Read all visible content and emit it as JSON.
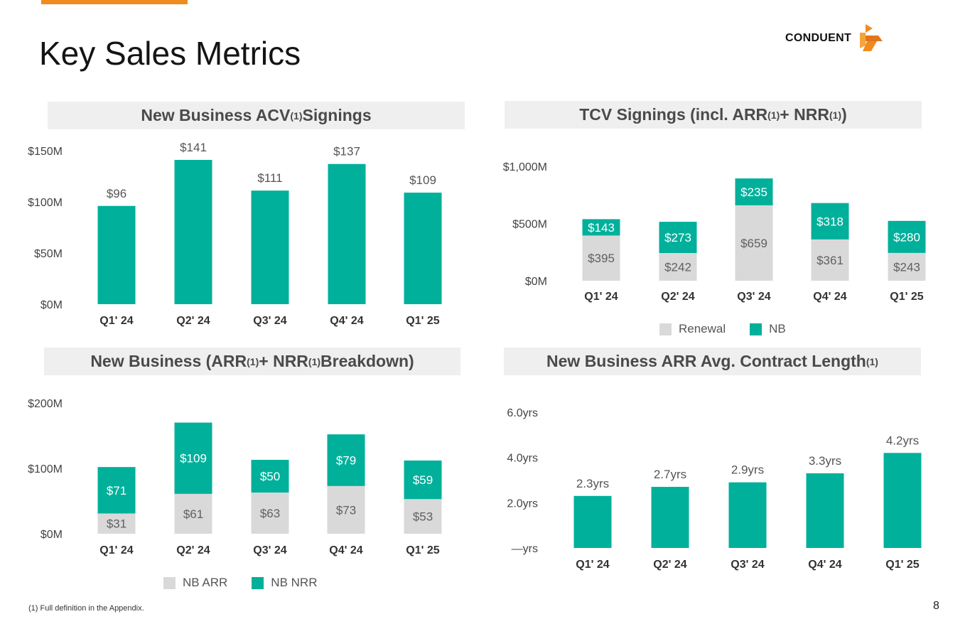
{
  "page": {
    "title": "Key Sales Metrics",
    "logo_text": "CONDUENT",
    "footnote": "(1) Full definition in the Appendix.",
    "page_number": "8"
  },
  "colors": {
    "teal": "#00b09b",
    "gray": "#d9d9d9",
    "accent": "#f08b1d"
  },
  "chart_data": [
    {
      "id": "acv",
      "type": "bar",
      "title": "New Business ACV",
      "title_sup": "(1)",
      "title_suffix": " Signings",
      "categories": [
        "Q1' 24",
        "Q2' 24",
        "Q3' 24",
        "Q4' 24",
        "Q1' 25"
      ],
      "values": [
        96,
        141,
        111,
        137,
        109
      ],
      "data_labels": [
        "$96",
        "$141",
        "$111",
        "$137",
        "$109"
      ],
      "ylim": [
        0,
        150
      ],
      "yticks": [
        0,
        50,
        100,
        150
      ],
      "ytick_labels": [
        "$0M",
        "$50M",
        "$100M",
        "$150M"
      ]
    },
    {
      "id": "tcv",
      "type": "bar",
      "stacked": true,
      "title": "TCV Signings (incl. ARR",
      "title_sup": "(1)",
      "title_mid": " + NRR",
      "title_sup2": "(1)",
      "title_suffix": ")",
      "categories": [
        "Q1' 24",
        "Q2' 24",
        "Q3' 24",
        "Q4' 24",
        "Q1' 25"
      ],
      "series": [
        {
          "name": "Renewal",
          "values": [
            395,
            242,
            659,
            361,
            243
          ],
          "labels": [
            "$395",
            "$242",
            "$659",
            "$361",
            "$243"
          ]
        },
        {
          "name": "NB",
          "values": [
            143,
            273,
            235,
            318,
            280
          ],
          "labels": [
            "$143",
            "$273",
            "$235",
            "$318",
            "$280"
          ]
        }
      ],
      "ylim": [
        0,
        1000
      ],
      "yticks": [
        0,
        500,
        1000
      ],
      "ytick_labels": [
        "$0M",
        "$500M",
        "$1,000M"
      ],
      "legend": [
        "Renewal",
        "NB"
      ]
    },
    {
      "id": "nb",
      "type": "bar",
      "stacked": true,
      "title": "New Business (ARR",
      "title_sup": "(1)",
      "title_mid": " + NRR",
      "title_sup2": "(1)",
      "title_suffix": " Breakdown)",
      "categories": [
        "Q1' 24",
        "Q2' 24",
        "Q3' 24",
        "Q4' 24",
        "Q1' 25"
      ],
      "series": [
        {
          "name": "NB ARR",
          "values": [
            31,
            61,
            63,
            73,
            53
          ],
          "labels": [
            "$31",
            "$61",
            "$63",
            "$73",
            "$53"
          ]
        },
        {
          "name": "NB NRR",
          "values": [
            71,
            109,
            50,
            79,
            59
          ],
          "labels": [
            "$71",
            "$109",
            "$50",
            "$79",
            "$59"
          ]
        }
      ],
      "ylim": [
        0,
        200
      ],
      "yticks": [
        0,
        100,
        200
      ],
      "ytick_labels": [
        "$0M",
        "$100M",
        "$200M"
      ],
      "legend": [
        "NB ARR",
        "NB NRR"
      ]
    },
    {
      "id": "len",
      "type": "bar",
      "title": "New Business ARR Avg. Contract Length",
      "title_sup": "(1)",
      "title_suffix": "",
      "categories": [
        "Q1' 24",
        "Q2' 24",
        "Q3' 24",
        "Q4' 24",
        "Q1' 25"
      ],
      "values": [
        2.3,
        2.7,
        2.9,
        3.3,
        4.2
      ],
      "data_labels": [
        "2.3yrs",
        "2.7yrs",
        "2.9yrs",
        "3.3yrs",
        "4.2yrs"
      ],
      "ylim": [
        0,
        6
      ],
      "yticks": [
        0,
        2,
        4,
        6
      ],
      "ytick_labels": [
        "—yrs",
        "2.0yrs",
        "4.0yrs",
        "6.0yrs"
      ]
    }
  ]
}
